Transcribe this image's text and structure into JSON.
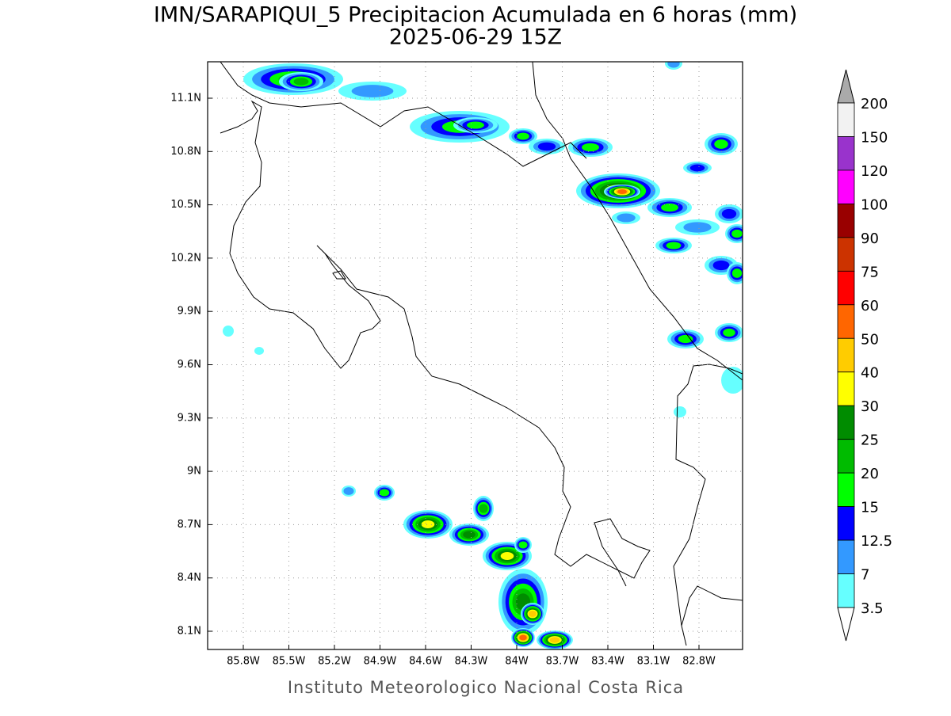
{
  "title": "IMN/SARAPIQUI_5 Precipitacion Acumulada en 6 horas (mm)",
  "subtitle": "2025-06-29 15Z",
  "map": {
    "lon_ticks": [
      "85.8W",
      "85.5W",
      "85.2W",
      "84.9W",
      "84.6W",
      "84.3W",
      "84W",
      "83.7W",
      "83.4W",
      "83.1W",
      "82.8W"
    ],
    "lat_ticks": [
      "11.1N",
      "10.8N",
      "10.5N",
      "10.2N",
      "9.9N",
      "9.6N",
      "9.3N",
      "9N",
      "8.7N",
      "8.4N",
      "8.1N"
    ]
  },
  "colorbar": {
    "labels": [
      "200",
      "150",
      "120",
      "100",
      "90",
      "75",
      "60",
      "50",
      "40",
      "30",
      "25",
      "20",
      "15",
      "12.5",
      "7",
      "3.5"
    ],
    "colors": [
      "#f2f2f2",
      "#9933cc",
      "#ff00ff",
      "#990000",
      "#cc3300",
      "#ff0000",
      "#ff6600",
      "#ffcc00",
      "#ffff00",
      "#008c00",
      "#00bb00",
      "#00ff00",
      "#0000ff",
      "#3399ff",
      "#66ffff"
    ]
  },
  "footer": "Instituto Meteorologico Nacional Costa Rica"
}
